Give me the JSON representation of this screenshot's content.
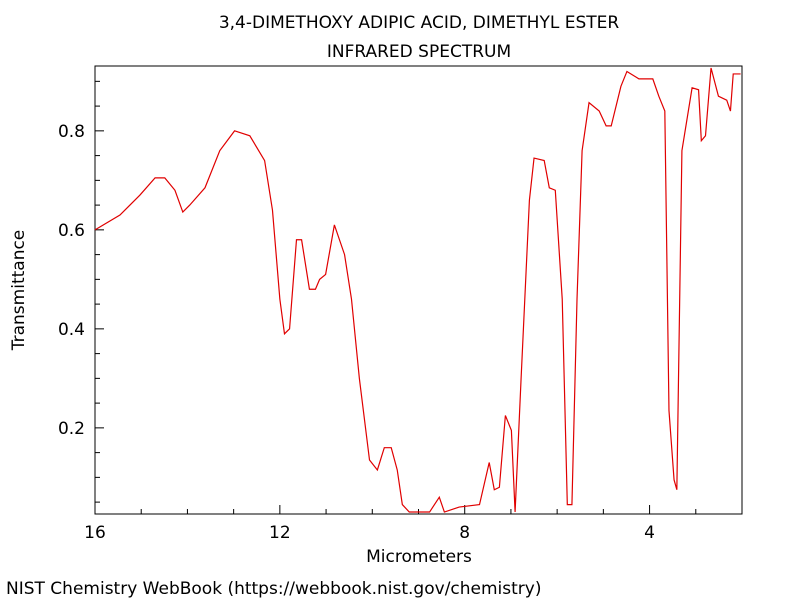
{
  "chart_data": {
    "type": "line",
    "title": "3,4-DIMETHOXY ADIPIC ACID, DIMETHYL ESTER",
    "subtitle": "INFRARED SPECTRUM",
    "x_label": "Micrometers",
    "y_label": "Transmittance",
    "source": "NIST Chemistry WebBook (https://webbook.nist.gov/chemistry)",
    "xlim": [
      16,
      2
    ],
    "ylim": [
      0.026,
      0.931
    ],
    "xticks": [
      16,
      12,
      8,
      4
    ],
    "yticks": [
      0.2,
      0.4,
      0.6,
      0.8
    ],
    "xticks_minor": [
      15,
      14,
      13,
      11,
      10,
      9,
      7,
      6,
      5,
      3
    ],
    "yticks_minor": [
      0.05,
      0.1,
      0.15,
      0.25,
      0.3,
      0.35,
      0.45,
      0.5,
      0.55,
      0.65,
      0.7,
      0.75,
      0.85,
      0.9
    ],
    "series": [
      {
        "color": "#e00000",
        "x": [
          16,
          15.46,
          15.03,
          14.7,
          14.49,
          14.27,
          14.1,
          13.95,
          13.62,
          13.3,
          12.98,
          12.65,
          12.33,
          12.16,
          12.0,
          11.9,
          11.79,
          11.64,
          11.53,
          11.36,
          11.23,
          11.14,
          11.01,
          10.82,
          10.6,
          10.45,
          10.28,
          10.06,
          9.89,
          9.74,
          9.59,
          9.46,
          9.35,
          9.2,
          8.76,
          8.55,
          8.44,
          8.12,
          7.68,
          7.47,
          7.36,
          7.25,
          7.12,
          6.99,
          6.91,
          6.78,
          6.6,
          6.5,
          6.28,
          6.17,
          6.04,
          5.89,
          5.78,
          5.68,
          5.57,
          5.46,
          5.31,
          5.09,
          4.94,
          4.83,
          4.62,
          4.49,
          4.23,
          3.93,
          3.8,
          3.67,
          3.58,
          3.47,
          3.41,
          3.3,
          3.08,
          2.94,
          2.88,
          2.79,
          2.67,
          2.51,
          2.33,
          2.25,
          2.19,
          2.03
        ],
        "values": [
          0.6,
          0.63,
          0.67,
          0.705,
          0.705,
          0.68,
          0.636,
          0.65,
          0.685,
          0.76,
          0.8,
          0.79,
          0.74,
          0.64,
          0.46,
          0.39,
          0.4,
          0.58,
          0.58,
          0.48,
          0.48,
          0.5,
          0.51,
          0.61,
          0.55,
          0.46,
          0.3,
          0.135,
          0.115,
          0.16,
          0.16,
          0.115,
          0.045,
          0.03,
          0.03,
          0.06,
          0.03,
          0.04,
          0.045,
          0.13,
          0.075,
          0.08,
          0.225,
          0.195,
          0.03,
          0.3,
          0.66,
          0.745,
          0.74,
          0.685,
          0.68,
          0.46,
          0.045,
          0.045,
          0.46,
          0.76,
          0.857,
          0.84,
          0.81,
          0.81,
          0.89,
          0.92,
          0.905,
          0.905,
          0.87,
          0.84,
          0.235,
          0.095,
          0.075,
          0.76,
          0.887,
          0.883,
          0.78,
          0.79,
          0.927,
          0.87,
          0.862,
          0.84,
          0.915,
          0.915
        ]
      }
    ]
  }
}
